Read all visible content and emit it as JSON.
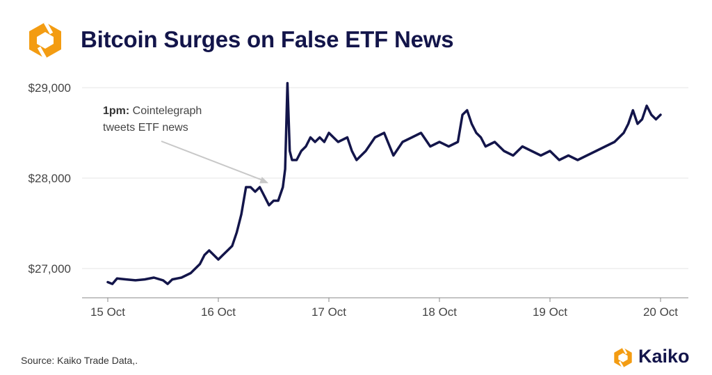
{
  "title": "Bitcoin Surges on False ETF News",
  "source": "Source: Kaiko Trade Data,.",
  "brand": {
    "name": "Kaiko",
    "color": "#f39c12"
  },
  "colors": {
    "line": "#13154a",
    "title": "#13154a",
    "grid": "#e6e6e6",
    "tick_text": "#444444",
    "annotation_arrow": "#c8c8c8"
  },
  "chart_data": {
    "type": "line",
    "title": "Bitcoin Surges on False ETF News",
    "xlabel": "",
    "ylabel": "",
    "y_ticks": [
      27000,
      28000,
      29000
    ],
    "y_tick_labels": [
      "$27,000",
      "$28,000",
      "$29,000"
    ],
    "x_ticks": [
      "2023-10-15",
      "2023-10-16",
      "2023-10-17",
      "2023-10-18",
      "2023-10-19",
      "2023-10-20"
    ],
    "x_tick_labels": [
      "15 Oct",
      "16 Oct",
      "17 Oct",
      "18 Oct",
      "19 Oct",
      "20 Oct"
    ],
    "xlim": [
      "2023-10-15",
      "2023-10-20"
    ],
    "ylim": [
      26600,
      29200
    ],
    "grid": "horizontal",
    "annotation": {
      "bold": "1pm:",
      "line1": " Cointelegraph",
      "line2": "tweets ETF news",
      "x": "2023-10-16T13:00",
      "y": 27960
    },
    "series": [
      {
        "x": [
          "2023-10-15T00:00",
          "2023-10-15T01:00",
          "2023-10-15T02:00",
          "2023-10-15T04:00",
          "2023-10-15T06:00",
          "2023-10-15T08:00",
          "2023-10-15T10:00",
          "2023-10-15T12:00",
          "2023-10-15T13:00",
          "2023-10-15T14:00",
          "2023-10-15T16:00",
          "2023-10-15T18:00",
          "2023-10-15T19:00",
          "2023-10-15T20:00",
          "2023-10-15T21:00",
          "2023-10-15T22:00",
          "2023-10-16T00:00",
          "2023-10-16T01:00",
          "2023-10-16T02:00",
          "2023-10-16T03:00",
          "2023-10-16T04:00",
          "2023-10-16T05:00",
          "2023-10-16T06:00",
          "2023-10-16T07:00",
          "2023-10-16T08:00",
          "2023-10-16T09:00",
          "2023-10-16T10:00",
          "2023-10-16T11:00",
          "2023-10-16T12:00",
          "2023-10-16T13:00",
          "2023-10-16T14:00",
          "2023-10-16T14:30",
          "2023-10-16T15:00",
          "2023-10-16T15:30",
          "2023-10-16T16:00",
          "2023-10-16T17:00",
          "2023-10-16T18:00",
          "2023-10-16T19:00",
          "2023-10-16T20:00",
          "2023-10-16T21:00",
          "2023-10-16T22:00",
          "2023-10-16T23:00",
          "2023-10-17T00:00",
          "2023-10-17T02:00",
          "2023-10-17T04:00",
          "2023-10-17T05:00",
          "2023-10-17T06:00",
          "2023-10-17T08:00",
          "2023-10-17T10:00",
          "2023-10-17T12:00",
          "2023-10-17T14:00",
          "2023-10-17T16:00",
          "2023-10-17T18:00",
          "2023-10-17T20:00",
          "2023-10-17T22:00",
          "2023-10-18T00:00",
          "2023-10-18T02:00",
          "2023-10-18T04:00",
          "2023-10-18T05:00",
          "2023-10-18T06:00",
          "2023-10-18T07:00",
          "2023-10-18T08:00",
          "2023-10-18T09:00",
          "2023-10-18T10:00",
          "2023-10-18T12:00",
          "2023-10-18T14:00",
          "2023-10-18T16:00",
          "2023-10-18T18:00",
          "2023-10-18T20:00",
          "2023-10-18T22:00",
          "2023-10-19T00:00",
          "2023-10-19T02:00",
          "2023-10-19T04:00",
          "2023-10-19T06:00",
          "2023-10-19T08:00",
          "2023-10-19T10:00",
          "2023-10-19T12:00",
          "2023-10-19T14:00",
          "2023-10-19T15:00",
          "2023-10-19T16:00",
          "2023-10-19T17:00",
          "2023-10-19T18:00",
          "2023-10-19T19:00",
          "2023-10-19T20:00",
          "2023-10-19T21:00",
          "2023-10-19T22:00",
          "2023-10-19T23:00",
          "2023-10-20T00:00"
        ],
        "values": [
          26850,
          26830,
          26890,
          26880,
          26870,
          26880,
          26900,
          26870,
          26830,
          26880,
          26900,
          26950,
          27000,
          27050,
          27150,
          27200,
          27100,
          27150,
          27200,
          27250,
          27400,
          27600,
          27900,
          27900,
          27850,
          27900,
          27800,
          27700,
          27750,
          27750,
          27900,
          28100,
          29050,
          28300,
          28200,
          28200,
          28300,
          28350,
          28450,
          28400,
          28450,
          28400,
          28500,
          28400,
          28450,
          28300,
          28200,
          28300,
          28450,
          28500,
          28250,
          28400,
          28450,
          28500,
          28350,
          28400,
          28350,
          28400,
          28700,
          28750,
          28600,
          28500,
          28450,
          28350,
          28400,
          28300,
          28250,
          28350,
          28300,
          28250,
          28300,
          28200,
          28250,
          28200,
          28250,
          28300,
          28350,
          28400,
          28450,
          28500,
          28600,
          28750,
          28600,
          28650,
          28800,
          28700,
          28650,
          28700
        ]
      }
    ]
  }
}
